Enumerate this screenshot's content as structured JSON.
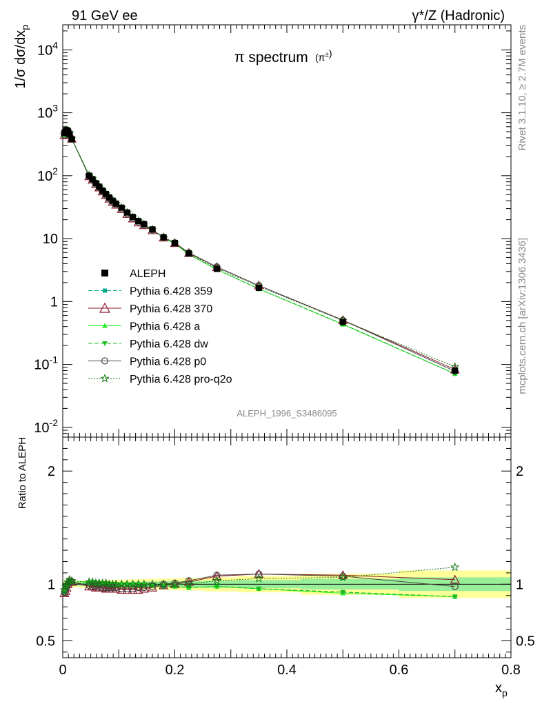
{
  "header": {
    "left": "91 GeV ee",
    "right": "γ*/Z (Hadronic)"
  },
  "side_labels": {
    "rivet": "Rivet 3.1.10, ≥ 2.7M events",
    "mcplots": "mcplots.cern.ch [arXiv:1306.3436]"
  },
  "chart_data": [
    {
      "type": "scatter",
      "title": "π spectrum",
      "title_suffix": "(π±)",
      "ylabel": "1/σ dσ/dx_p",
      "xlabel": "x_p",
      "yscale": "log",
      "xlim": [
        0,
        0.8
      ],
      "ylim": [
        0.007,
        25000
      ],
      "ytick_labels": [
        "10^-2",
        "10^-1",
        "1",
        "10",
        "10^2",
        "10^3",
        "10^4"
      ],
      "xtick_labels": [
        "0",
        "0.2",
        "0.4",
        "0.6",
        "0.8"
      ],
      "analysis_label": "ALEPH_1996_S3486095",
      "legend_position": "center-left",
      "series": [
        {
          "name": "ALEPH",
          "color": "#000000",
          "marker": "square",
          "line": "none",
          "x": [
            0.003,
            0.005,
            0.007,
            0.009,
            0.012,
            0.016,
            0.047,
            0.053,
            0.059,
            0.065,
            0.071,
            0.077,
            0.083,
            0.089,
            0.095,
            0.105,
            0.115,
            0.125,
            0.135,
            0.145,
            0.16,
            0.18,
            0.2,
            0.225,
            0.275,
            0.35,
            0.5,
            0.7
          ],
          "y": [
            480,
            520,
            530,
            510,
            460,
            380,
            100,
            88,
            76,
            67,
            58,
            51,
            45,
            40,
            36,
            31,
            26,
            22,
            19,
            17,
            14,
            10.5,
            8.5,
            5.8,
            3.3,
            1.65,
            0.47,
            0.08
          ]
        },
        {
          "name": "Pythia 6.428 359",
          "color": "#00aa88",
          "marker": "small-square",
          "line": "dashed"
        },
        {
          "name": "Pythia 6.428 370",
          "color": "#8b1a2b",
          "marker": "open-triangle",
          "line": "solid"
        },
        {
          "name": "Pythia 6.428 a",
          "color": "#22ee22",
          "marker": "triangle",
          "line": "solid"
        },
        {
          "name": "Pythia 6.428 dw",
          "color": "#22bb22",
          "marker": "triangle-down",
          "line": "dashed"
        },
        {
          "name": "Pythia 6.428 p0",
          "color": "#444444",
          "marker": "open-circle",
          "line": "solid"
        },
        {
          "name": "Pythia 6.428 pro-q2o",
          "color": "#117711",
          "marker": "open-star",
          "line": "dotted"
        }
      ]
    },
    {
      "type": "line",
      "ylabel": "Ratio to ALEPH",
      "xlabel": "x_p",
      "xlim": [
        0,
        0.8
      ],
      "ylim": [
        0.35,
        2.3
      ],
      "ytick_labels": [
        "0.5",
        "1",
        "2"
      ],
      "xtick_labels": [
        "0",
        "0.2",
        "0.4",
        "0.6",
        "0.8"
      ],
      "x": [
        0.003,
        0.005,
        0.007,
        0.009,
        0.012,
        0.016,
        0.047,
        0.053,
        0.059,
        0.065,
        0.071,
        0.077,
        0.083,
        0.089,
        0.095,
        0.105,
        0.115,
        0.125,
        0.135,
        0.145,
        0.16,
        0.18,
        0.2,
        0.225,
        0.275,
        0.35,
        0.5,
        0.7
      ],
      "series": [
        {
          "name": "Pythia 6.428 359",
          "ratio": [
            0.93,
            0.96,
            0.98,
            1.0,
            1.02,
            1.01,
            1.01,
            1.01,
            1.01,
            1.0,
            1.0,
            1.0,
            1.0,
            1.0,
            0.99,
            0.99,
            0.99,
            0.99,
            0.99,
            0.99,
            0.99,
            0.98,
            0.98,
            0.97,
            0.98,
            0.96,
            0.93,
            0.89
          ]
        },
        {
          "name": "Pythia 6.428 370",
          "ratio": [
            0.92,
            0.94,
            0.97,
            1.0,
            1.03,
            1.02,
            0.98,
            0.98,
            0.97,
            0.97,
            0.97,
            0.96,
            0.96,
            0.96,
            0.96,
            0.95,
            0.95,
            0.95,
            0.95,
            0.96,
            0.97,
            0.99,
            1.0,
            1.02,
            1.07,
            1.09,
            1.08,
            1.04
          ]
        },
        {
          "name": "Pythia 6.428 a",
          "ratio": [
            0.94,
            0.97,
            0.99,
            1.01,
            1.03,
            1.02,
            1.02,
            1.02,
            1.02,
            1.02,
            1.01,
            1.01,
            1.01,
            1.01,
            1.0,
            1.0,
            1.0,
            1.0,
            1.0,
            1.0,
            0.99,
            0.99,
            0.98,
            0.97,
            0.98,
            0.96,
            0.92,
            0.89
          ]
        },
        {
          "name": "Pythia 6.428 dw",
          "ratio": [
            0.93,
            0.96,
            0.98,
            1.0,
            1.02,
            1.01,
            1.01,
            1.01,
            1.01,
            1.0,
            1.0,
            1.0,
            1.0,
            1.0,
            1.0,
            0.99,
            0.99,
            0.99,
            0.99,
            0.99,
            0.99,
            0.98,
            0.98,
            0.97,
            0.98,
            0.96,
            0.93,
            0.89
          ]
        },
        {
          "name": "Pythia 6.428 p0",
          "ratio": [
            0.93,
            0.95,
            0.98,
            1.0,
            1.02,
            1.02,
            0.99,
            0.98,
            0.98,
            0.98,
            0.97,
            0.97,
            0.97,
            0.97,
            0.97,
            0.96,
            0.96,
            0.96,
            0.97,
            0.97,
            0.98,
            1.0,
            1.01,
            1.03,
            1.08,
            1.09,
            1.07,
            0.98
          ]
        },
        {
          "name": "Pythia 6.428 pro-q2o",
          "ratio": [
            0.95,
            0.98,
            1.0,
            1.02,
            1.04,
            1.03,
            1.02,
            1.02,
            1.01,
            1.01,
            1.01,
            1.01,
            1.0,
            1.0,
            1.0,
            1.0,
            1.0,
            1.0,
            1.0,
            1.0,
            1.0,
            1.0,
            1.0,
            1.0,
            1.03,
            1.05,
            1.06,
            1.15
          ]
        }
      ]
    }
  ]
}
